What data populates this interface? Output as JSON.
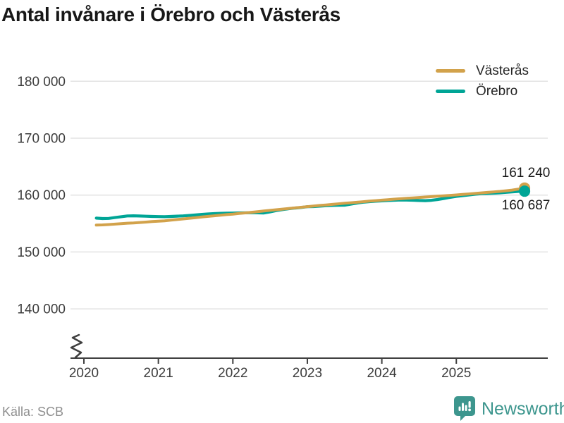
{
  "title": "Antal invånare i Örebro och Västerås",
  "source": "Källa: SCB",
  "branding": {
    "name": "Newsworthy",
    "color": "#3D968E"
  },
  "legend": [
    {
      "label": "Västerås",
      "color": "#D2A24B"
    },
    {
      "label": "Örebro",
      "color": "#00A596"
    }
  ],
  "chart_data": {
    "type": "line",
    "title": "Antal invånare i Örebro och Västerås",
    "xlabel": "",
    "ylabel": "",
    "frequency": "monthly",
    "x_first": "2020-02",
    "x_last": "2025-11",
    "axis_break": true,
    "grid": "horizontal",
    "legend_position": "top-right",
    "ylim_shown": [
      140000,
      180000
    ],
    "yticks": [
      180000,
      170000,
      160000,
      150000,
      140000
    ],
    "ytick_labels": [
      "180 000",
      "170 000",
      "160 000",
      "150 000",
      "140 000"
    ],
    "xticks": [
      2020,
      2021,
      2022,
      2023,
      2024,
      2025
    ],
    "xtick_labels": [
      "2020",
      "2021",
      "2022",
      "2023",
      "2024",
      "2025"
    ],
    "series": [
      {
        "name": "Västerås",
        "color": "#D2A24B",
        "end_value": 161240,
        "end_label": "161 240",
        "values": [
          154720,
          154760,
          154820,
          154900,
          154970,
          155050,
          155110,
          155180,
          155260,
          155340,
          155410,
          155480,
          155590,
          155700,
          155810,
          155920,
          156040,
          156150,
          156260,
          156360,
          156470,
          156570,
          156650,
          156760,
          156870,
          156980,
          157090,
          157200,
          157310,
          157420,
          157530,
          157640,
          157750,
          157860,
          157970,
          158080,
          158180,
          158270,
          158370,
          158460,
          158560,
          158650,
          158740,
          158830,
          158930,
          159020,
          159110,
          159200,
          159280,
          159350,
          159430,
          159500,
          159580,
          159650,
          159730,
          159800,
          159880,
          159950,
          160030,
          160110,
          160200,
          160290,
          160380,
          160470,
          160560,
          160650,
          160760,
          160880,
          161050,
          161240
        ]
      },
      {
        "name": "Örebro",
        "color": "#00A596",
        "end_value": 160687,
        "end_label": "160 687",
        "values": [
          155950,
          155870,
          155900,
          156050,
          156200,
          156330,
          156360,
          156320,
          156280,
          156250,
          156220,
          156200,
          156240,
          156290,
          156340,
          156420,
          156510,
          156600,
          156680,
          156740,
          156790,
          156820,
          156840,
          156860,
          156890,
          156900,
          156880,
          156850,
          157050,
          157280,
          157450,
          157600,
          157720,
          157820,
          157950,
          157980,
          158060,
          158130,
          158180,
          158210,
          158230,
          158400,
          158600,
          158750,
          158850,
          158920,
          158980,
          159050,
          159100,
          159130,
          159120,
          159100,
          159050,
          159020,
          159080,
          159220,
          159400,
          159600,
          159780,
          159900,
          160020,
          160150,
          160250,
          160280,
          160330,
          160400,
          160480,
          160560,
          160640,
          160687
        ]
      }
    ]
  }
}
